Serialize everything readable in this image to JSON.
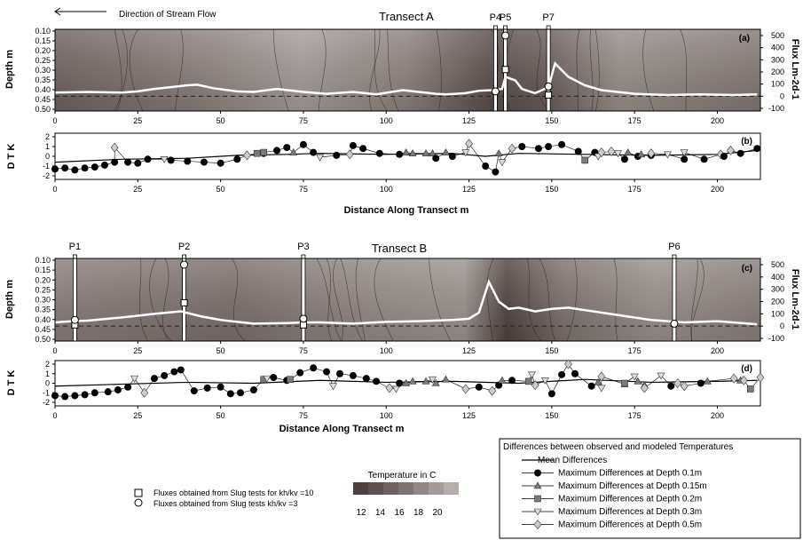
{
  "header": {
    "direction_label": "Direction of Stream Flow",
    "xlabel": "Distance Along Transect m"
  },
  "colors": {
    "contour_dark": "#4d403c",
    "contour_mid": "#7a6d69",
    "contour_light": "#b5aeab",
    "flux_line": "#ffffff",
    "mean_line": "#000000",
    "square_marker": "#7a7a7a",
    "diamond_marker": "#cccccc",
    "triangle_marker": "#7a7a7a"
  },
  "chart_data": [
    {
      "id": "a",
      "type": "heatmap",
      "title": "Transect A",
      "panel_label": "(a)",
      "ylabel": "Depth m",
      "y2label": "Flux Lm-2d-1",
      "xlim": [
        0,
        213
      ],
      "depth_ticks": [
        "0.10",
        "0.15",
        "0.20",
        "0.25",
        "0.30",
        "0.35",
        "0.40",
        "0.45",
        "0.50"
      ],
      "flux_ticks": [
        "500",
        "400",
        "300",
        "200",
        "100",
        "0",
        "-100"
      ],
      "x_ticks": [
        "0",
        "25",
        "50",
        "75",
        "100",
        "125",
        "150",
        "175",
        "200"
      ],
      "piezometers": [
        {
          "label": "P4",
          "x": 133
        },
        {
          "label": "P5",
          "x": 136
        },
        {
          "label": "P7",
          "x": 149
        }
      ],
      "flux_series": {
        "x": [
          0,
          10,
          20,
          25,
          30,
          35,
          40,
          43,
          48,
          55,
          60,
          67,
          75,
          82,
          90,
          97,
          105,
          115,
          118,
          124,
          128,
          132,
          135,
          136,
          139,
          141,
          145,
          149,
          151,
          155,
          160,
          165,
          175,
          185,
          195,
          205,
          212
        ],
        "values": [
          30,
          35,
          30,
          40,
          60,
          75,
          90,
          95,
          65,
          40,
          35,
          60,
          35,
          20,
          35,
          15,
          50,
          20,
          15,
          25,
          45,
          50,
          60,
          160,
          130,
          60,
          25,
          75,
          270,
          160,
          90,
          50,
          20,
          10,
          15,
          10,
          15
        ]
      },
      "slug_fluxes_kh10": [
        {
          "x": 136,
          "flux": 220
        },
        {
          "x": 149,
          "flux": 10
        }
      ],
      "slug_fluxes_kh3": [
        {
          "x": 133,
          "flux": 40
        },
        {
          "x": 136,
          "flux": 500
        },
        {
          "x": 149,
          "flux": 80
        }
      ]
    },
    {
      "id": "b",
      "type": "scatter",
      "panel_label": "(b)",
      "ylabel": "D T K",
      "ylim": [
        -2,
        2
      ],
      "y_ticks": [
        "2",
        "1",
        "0",
        "-1",
        "-2"
      ],
      "x_ticks": [
        "0",
        "25",
        "50",
        "75",
        "100",
        "125",
        "150",
        "175",
        "200"
      ],
      "xlabel": "Distance Along Transect m",
      "mean_series": {
        "x": [
          0,
          20,
          40,
          55,
          70,
          80,
          100,
          120,
          130,
          140,
          160,
          180,
          200,
          212
        ],
        "values": [
          -0.6,
          -0.3,
          -0.2,
          0.1,
          0.2,
          0.3,
          0.2,
          0.3,
          0.0,
          0.3,
          0.2,
          0.1,
          0.2,
          0.6
        ]
      },
      "depth_01": {
        "x": [
          0,
          3,
          6,
          9,
          12,
          15,
          18,
          22,
          25,
          28,
          35,
          40,
          45,
          50,
          55,
          63,
          67,
          70,
          75,
          78,
          85,
          90,
          93,
          98,
          104,
          115,
          120,
          130,
          133,
          141,
          146,
          149,
          153,
          158,
          163,
          172,
          176,
          180,
          190,
          196,
          202,
          207,
          212
        ],
        "values": [
          -1.3,
          -1.2,
          -1.4,
          -1.2,
          -1.1,
          -0.9,
          -0.6,
          -0.6,
          -0.7,
          -0.3,
          -0.4,
          -0.5,
          -0.6,
          -0.7,
          -0.3,
          0.3,
          0.6,
          0.9,
          1.2,
          0.4,
          0.1,
          1.1,
          0.8,
          0.3,
          0.2,
          -0.2,
          0.0,
          -1.0,
          -1.6,
          1.0,
          0.8,
          1.0,
          1.2,
          0.5,
          0.4,
          -0.3,
          0.0,
          0.1,
          -0.3,
          -0.3,
          0.0,
          0.3,
          0.8
        ]
      },
      "depth_015": {
        "x": [
          72,
          106,
          108,
          112,
          114,
          118,
          134,
          173,
          177
        ],
        "values": [
          0.4,
          0.4,
          0.3,
          0.3,
          0.3,
          0.4,
          0.3,
          0.4,
          0.2
        ]
      },
      "depth_02": {
        "x": [
          61,
          63,
          160
        ],
        "values": [
          0.3,
          0.4,
          -0.4
        ]
      },
      "depth_03": {
        "x": [
          33,
          80,
          124,
          135,
          164,
          170,
          185,
          190
        ],
        "values": [
          -0.3,
          -0.1,
          0.4,
          -0.6,
          0.0,
          0.3,
          0.2,
          0.4
        ]
      },
      "depth_05": {
        "x": [
          18,
          58,
          89,
          125,
          138,
          165,
          168,
          180,
          201,
          204
        ],
        "values": [
          0.9,
          0.1,
          0.2,
          1.3,
          0.8,
          0.4,
          0.5,
          0.3,
          0.2,
          0.6
        ]
      }
    },
    {
      "id": "c",
      "type": "heatmap",
      "title": "Transect B",
      "panel_label": "(c)",
      "ylabel": "Depth m",
      "y2label": "Flux Lm-2d-1",
      "xlim": [
        0,
        213
      ],
      "depth_ticks": [
        "0.10",
        "0.15",
        "0.20",
        "0.25",
        "0.30",
        "0.35",
        "0.40",
        "0.45",
        "0.50"
      ],
      "flux_ticks": [
        "500",
        "400",
        "300",
        "200",
        "100",
        "0",
        "-100"
      ],
      "x_ticks": [
        "0",
        "25",
        "50",
        "75",
        "100",
        "125",
        "150",
        "175",
        "200"
      ],
      "piezometers": [
        {
          "label": "P1",
          "x": 6
        },
        {
          "label": "P2",
          "x": 39
        },
        {
          "label": "P3",
          "x": 75
        },
        {
          "label": "P6",
          "x": 187
        }
      ],
      "flux_series": {
        "x": [
          0,
          5,
          10,
          20,
          30,
          38,
          44,
          50,
          60,
          70,
          75,
          80,
          90,
          100,
          110,
          120,
          125,
          128,
          131,
          134,
          137,
          140,
          145,
          150,
          155,
          160,
          170,
          180,
          190,
          200,
          212
        ],
        "values": [
          30,
          40,
          45,
          70,
          100,
          120,
          80,
          50,
          20,
          25,
          30,
          30,
          20,
          35,
          40,
          50,
          60,
          110,
          360,
          200,
          140,
          150,
          120,
          140,
          150,
          130,
          90,
          50,
          30,
          40,
          15
        ]
      },
      "slug_fluxes_kh10": [
        {
          "x": 6,
          "flux": 10
        },
        {
          "x": 39,
          "flux": 190
        },
        {
          "x": 75,
          "flux": 10
        }
      ],
      "slug_fluxes_kh3": [
        {
          "x": 6,
          "flux": 50
        },
        {
          "x": 39,
          "flux": 500
        },
        {
          "x": 75,
          "flux": 60
        },
        {
          "x": 187,
          "flux": 20
        }
      ]
    },
    {
      "id": "d",
      "type": "scatter",
      "panel_label": "(d)",
      "ylabel": "D T K",
      "ylim": [
        -2,
        2
      ],
      "y_ticks": [
        "2",
        "1",
        "0",
        "-1",
        "-2"
      ],
      "x_ticks": [
        "0",
        "25",
        "50",
        "75",
        "100",
        "125",
        "150",
        "175",
        "200"
      ],
      "xlabel": "Distance Along Transect m",
      "mean_series": {
        "x": [
          0,
          20,
          40,
          60,
          80,
          100,
          120,
          140,
          160,
          180,
          200,
          212
        ],
        "values": [
          -0.3,
          -0.1,
          0.1,
          0.0,
          0.3,
          0.1,
          0.2,
          0.0,
          0.4,
          0.1,
          0.2,
          0.3
        ]
      },
      "depth_01": {
        "x": [
          0,
          3,
          6,
          9,
          12,
          16,
          19,
          22,
          30,
          33,
          36,
          38,
          42,
          46,
          50,
          53,
          56,
          60,
          66,
          70,
          74,
          78,
          82,
          86,
          90,
          94,
          97,
          104,
          128,
          134,
          138,
          150,
          153,
          157,
          162,
          186,
          195
        ],
        "values": [
          -1.3,
          -1.4,
          -1.3,
          -1.2,
          -1.0,
          -0.9,
          -0.7,
          -0.4,
          0.5,
          0.8,
          1.2,
          1.4,
          -0.8,
          -0.5,
          -0.4,
          -1.1,
          -1.0,
          -0.7,
          0.6,
          0.3,
          1.1,
          1.6,
          1.2,
          1.0,
          0.8,
          0.5,
          0.2,
          0.0,
          -0.4,
          -0.2,
          0.3,
          -1.1,
          0.9,
          1.0,
          -0.3,
          -0.3,
          0.0
        ]
      },
      "depth_015": {
        "x": [
          106,
          108,
          112,
          115,
          118,
          135,
          164,
          172,
          176,
          178,
          197,
          207
        ],
        "values": [
          0.0,
          0.2,
          0.2,
          0.0,
          0.4,
          0.3,
          0.1,
          -0.1,
          0.2,
          -0.2,
          0.2,
          0.3
        ]
      },
      "depth_02": {
        "x": [
          63,
          71,
          143,
          172,
          210
        ],
        "values": [
          0.4,
          0.4,
          0.2,
          0.0,
          -0.6
        ]
      },
      "depth_03": {
        "x": [
          24,
          64,
          84,
          103,
          114,
          144,
          148,
          165,
          175,
          183
        ],
        "values": [
          0.5,
          0.5,
          -0.3,
          -0.6,
          0.4,
          0.9,
          0.3,
          -0.5,
          0.7,
          0.8
        ]
      },
      "depth_05": {
        "x": [
          27,
          101,
          124,
          132,
          145,
          155,
          165,
          178,
          188,
          190,
          205,
          208,
          213
        ],
        "values": [
          -1.0,
          -0.5,
          -0.6,
          -0.8,
          -0.2,
          2.0,
          0.7,
          -0.5,
          0.0,
          -0.3,
          0.5,
          0.3,
          0.6
        ]
      }
    }
  ],
  "colorbar": {
    "title": "Temperature in C",
    "ticks": [
      "12",
      "14",
      "16",
      "18",
      "20"
    ]
  },
  "legend_markers": {
    "kh10": "Fluxes obtained from Slug tests for kh/kv =10",
    "kh3": "Fluxes obtained from Slug tests kh/kv =3"
  },
  "legend_diff": {
    "title": "Differences between observed and modeled Temperatures",
    "items": [
      "Mean Differences",
      "Maximum Differences at Depth 0.1m",
      "Maximum Differences at Depth 0.15m",
      "Maximum Differences at Depth 0.2m",
      "Maximum Differences at Depth 0.3m",
      "Maximum Differences at Depth 0.5m"
    ]
  }
}
